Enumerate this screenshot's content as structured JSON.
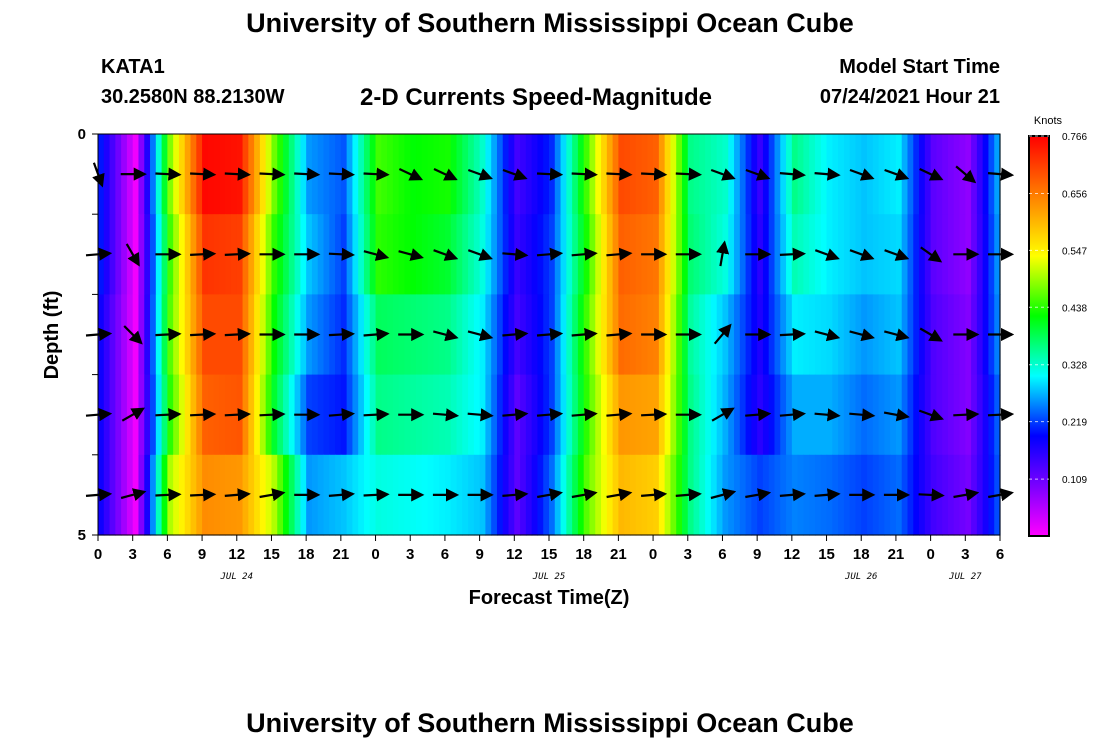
{
  "header": {
    "title": "University of Southern Mississippi Ocean Cube",
    "station_id": "KATA1",
    "station_coords": "30.2580N  88.2130W",
    "chart_heading": "2-D Currents Speed-Magnitude",
    "model_label": "Model Start Time",
    "model_time": "07/24/2021 Hour 21"
  },
  "footer": {
    "title": "University of Southern Mississippi Ocean Cube"
  },
  "chart_data": {
    "type": "heatmap",
    "title": "2-D Currents Speed-Magnitude",
    "xlabel": "Forecast Time(Z)",
    "ylabel": "Depth (ft)",
    "x_ticks": [
      "0",
      "3",
      "6",
      "9",
      "12",
      "15",
      "18",
      "21",
      "0",
      "3",
      "6",
      "9",
      "12",
      "15",
      "18",
      "21",
      "0",
      "3",
      "6",
      "9",
      "12",
      "15",
      "18",
      "21",
      "0",
      "3",
      "6"
    ],
    "date_labels": [
      {
        "label": "JUL 24",
        "tick": 4
      },
      {
        "label": "JUL 25",
        "tick": 13
      },
      {
        "label": "JUL 26",
        "tick": 22
      },
      {
        "label": "JUL 27",
        "tick": 25
      }
    ],
    "y_ticks": [
      "0",
      "5"
    ],
    "ylim": [
      0,
      5
    ],
    "colorbar": {
      "title": "Knots",
      "ticks": [
        "0.766",
        "0.656",
        "0.547",
        "0.438",
        "0.328",
        "0.219",
        "0.109"
      ],
      "range": [
        0,
        0.766
      ]
    },
    "depth_rows": 5,
    "time_hours": [
      0,
      3,
      6,
      9,
      12,
      15,
      18,
      21,
      24,
      27,
      30,
      33,
      36,
      39,
      42,
      45,
      48,
      51,
      54,
      57,
      60,
      63,
      66,
      69,
      72,
      75,
      78
    ],
    "speed_knots": [
      [
        0.2,
        0.01,
        0.48,
        0.76,
        0.75,
        0.47,
        0.26,
        0.23,
        0.45,
        0.42,
        0.43,
        0.33,
        0.14,
        0.21,
        0.45,
        0.7,
        0.68,
        0.36,
        0.33,
        0.15,
        0.36,
        0.3,
        0.28,
        0.3,
        0.12,
        0.08,
        0.3
      ],
      [
        0.2,
        0.01,
        0.45,
        0.72,
        0.71,
        0.44,
        0.28,
        0.22,
        0.44,
        0.42,
        0.4,
        0.32,
        0.15,
        0.22,
        0.43,
        0.68,
        0.66,
        0.37,
        0.32,
        0.16,
        0.34,
        0.3,
        0.28,
        0.29,
        0.12,
        0.08,
        0.29
      ],
      [
        0.18,
        0.01,
        0.46,
        0.7,
        0.7,
        0.42,
        0.26,
        0.21,
        0.38,
        0.37,
        0.36,
        0.3,
        0.14,
        0.22,
        0.45,
        0.67,
        0.65,
        0.35,
        0.28,
        0.17,
        0.3,
        0.29,
        0.26,
        0.28,
        0.13,
        0.09,
        0.28
      ],
      [
        0.18,
        0.01,
        0.44,
        0.68,
        0.69,
        0.4,
        0.22,
        0.2,
        0.36,
        0.35,
        0.34,
        0.3,
        0.12,
        0.22,
        0.44,
        0.63,
        0.62,
        0.36,
        0.27,
        0.16,
        0.27,
        0.27,
        0.24,
        0.26,
        0.13,
        0.09,
        0.26
      ],
      [
        0.18,
        0.01,
        0.5,
        0.64,
        0.63,
        0.5,
        0.26,
        0.28,
        0.32,
        0.31,
        0.3,
        0.28,
        0.12,
        0.24,
        0.46,
        0.6,
        0.58,
        0.36,
        0.26,
        0.22,
        0.25,
        0.24,
        0.22,
        0.24,
        0.14,
        0.1,
        0.25
      ]
    ],
    "vector_angles_deg": [
      [
        -70,
        0,
        -3,
        -3,
        -3,
        -3,
        -3,
        -3,
        -3,
        -25,
        -25,
        -20,
        -20,
        -3,
        -3,
        -3,
        -3,
        -3,
        -20,
        -20,
        -5,
        -5,
        -20,
        -20,
        -25,
        -40,
        -5
      ],
      [
        5,
        -60,
        0,
        3,
        3,
        0,
        0,
        -3,
        -15,
        -15,
        -20,
        -20,
        -5,
        5,
        5,
        5,
        0,
        0,
        80,
        0,
        3,
        -20,
        -20,
        -20,
        -35,
        0,
        0
      ],
      [
        5,
        -45,
        3,
        3,
        3,
        0,
        0,
        3,
        5,
        0,
        -15,
        -15,
        5,
        5,
        5,
        5,
        0,
        0,
        50,
        0,
        3,
        -15,
        -15,
        -15,
        -30,
        0,
        0
      ],
      [
        5,
        30,
        3,
        3,
        3,
        3,
        0,
        5,
        3,
        0,
        -5,
        -5,
        5,
        5,
        5,
        5,
        3,
        0,
        30,
        5,
        5,
        -5,
        -5,
        -10,
        -20,
        3,
        3
      ],
      [
        5,
        15,
        3,
        3,
        5,
        10,
        0,
        5,
        3,
        0,
        0,
        0,
        5,
        10,
        10,
        10,
        5,
        5,
        15,
        10,
        5,
        5,
        0,
        0,
        -3,
        10,
        10
      ]
    ]
  }
}
